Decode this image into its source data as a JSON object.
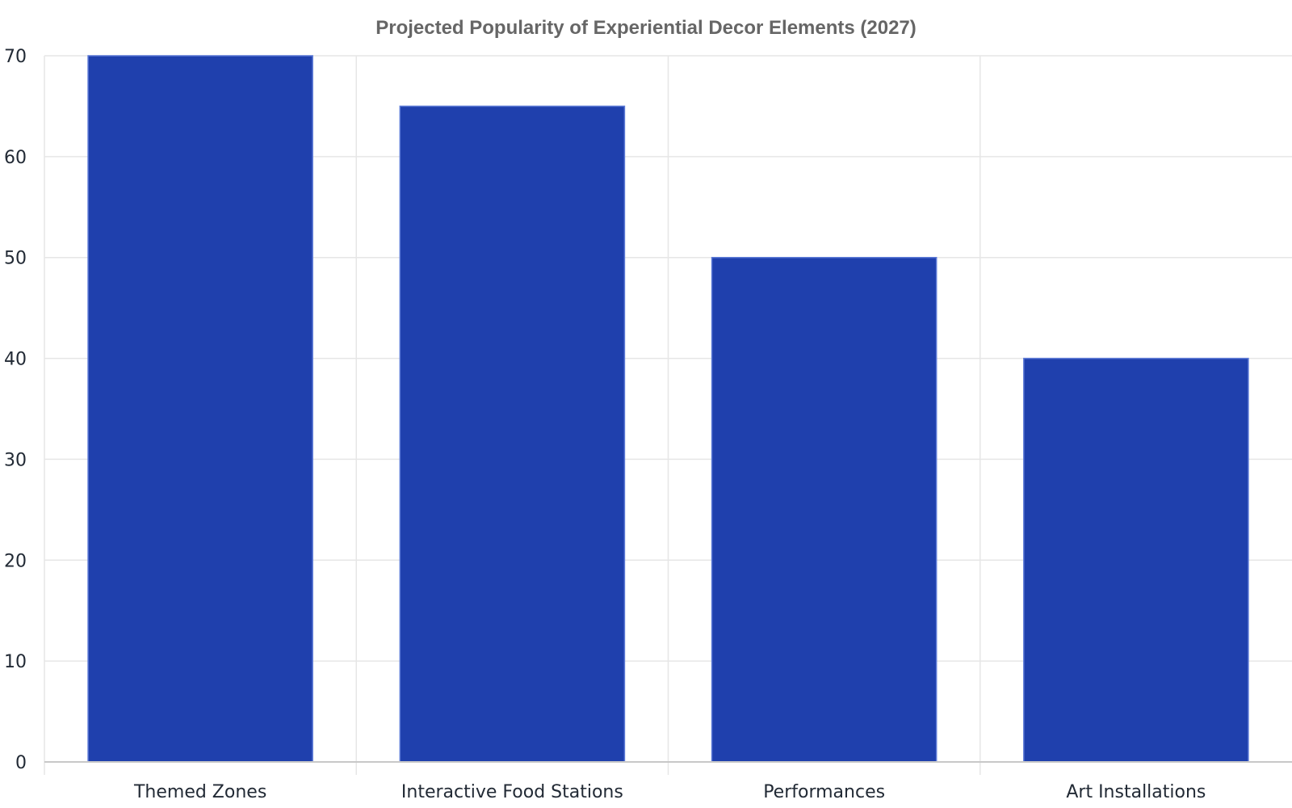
{
  "chart_data": {
    "type": "bar",
    "title": "Projected Popularity of Experiential Decor Elements (2027)",
    "xlabel": "",
    "ylabel": "",
    "categories": [
      "Themed Zones",
      "Interactive Food Stations",
      "Performances",
      "Art Installations"
    ],
    "values": [
      70,
      65,
      50,
      40
    ],
    "ylim": [
      0,
      70
    ],
    "yticks": [
      0,
      10,
      20,
      30,
      40,
      50,
      60,
      70
    ],
    "grid": true,
    "legend": "none",
    "colors": {
      "bar_fill": "#1f40ad",
      "bar_edge": "#5b79d6",
      "grid": "#e6e6e6",
      "axis": "#c8c8c8",
      "text": "#222a35",
      "title": "#666666"
    }
  }
}
